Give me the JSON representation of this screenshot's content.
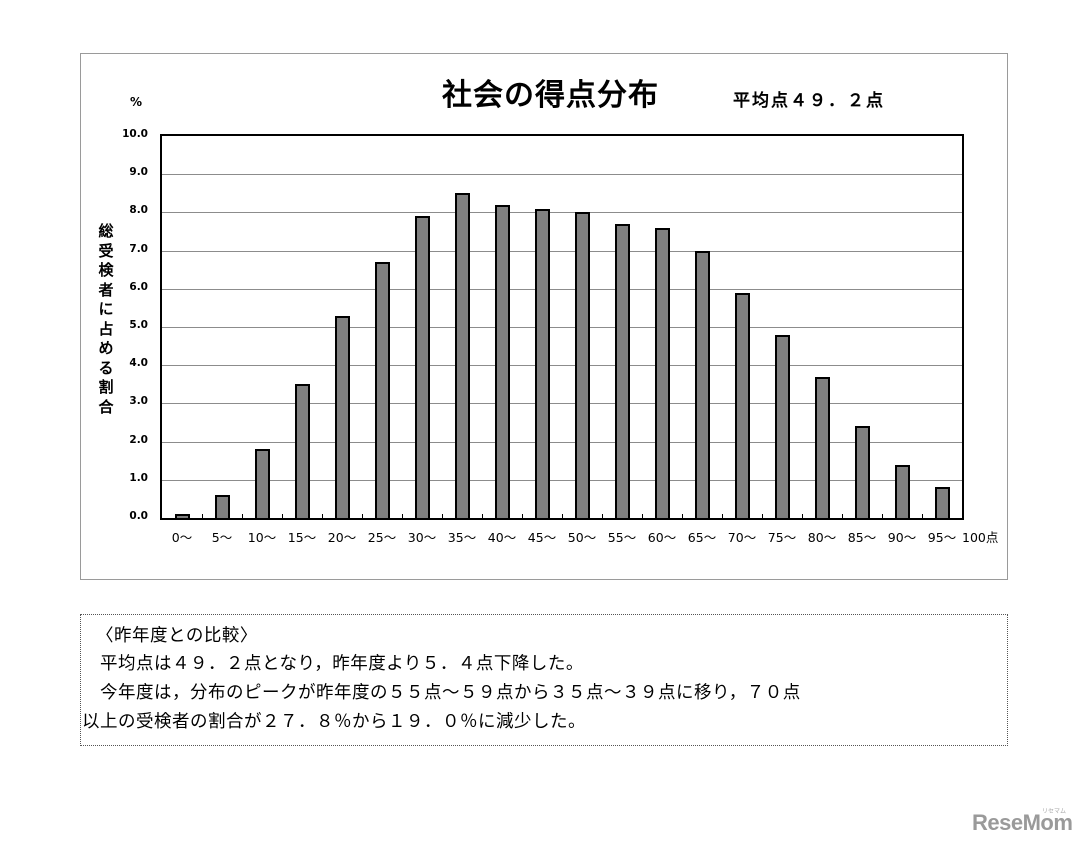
{
  "chart_data": {
    "type": "bar",
    "title": "社会の得点分布",
    "subtitle": "平均点４９．２点",
    "unit_label": "%",
    "xlabel": "",
    "ylabel": "総受検者に占める割合",
    "x_end_label": "100点",
    "ylim": [
      0,
      10
    ],
    "yticks": [
      "10.0",
      "9.0",
      "8.0",
      "7.0",
      "6.0",
      "5.0",
      "4.0",
      "3.0",
      "2.0",
      "1.0",
      "0.0"
    ],
    "grid": true,
    "categories": [
      "0～",
      "5～",
      "10～",
      "15～",
      "20～",
      "25～",
      "30～",
      "35～",
      "40～",
      "45～",
      "50～",
      "55～",
      "60～",
      "65～",
      "70～",
      "75～",
      "80～",
      "85～",
      "90～",
      "95～"
    ],
    "values": [
      0.1,
      0.6,
      1.8,
      3.5,
      5.3,
      6.7,
      7.9,
      8.5,
      8.2,
      8.1,
      8.0,
      7.7,
      7.6,
      7.0,
      5.9,
      4.8,
      3.7,
      2.4,
      1.4,
      0.8
    ],
    "bar_color": "#808080",
    "bar_border_color": "#000000"
  },
  "note": {
    "heading": "〈昨年度との比較〉",
    "lines": [
      "　平均点は４９．２点となり，昨年度より５．４点下降した。",
      "　今年度は，分布のピークが昨年度の５５点～５９点から３５点～３９点に移り，７０点",
      "以上の受検者の割合が２７．８％から１９．０％に減少した。"
    ]
  },
  "watermark": {
    "text": "ReseMom",
    "sub": "リセマム"
  }
}
